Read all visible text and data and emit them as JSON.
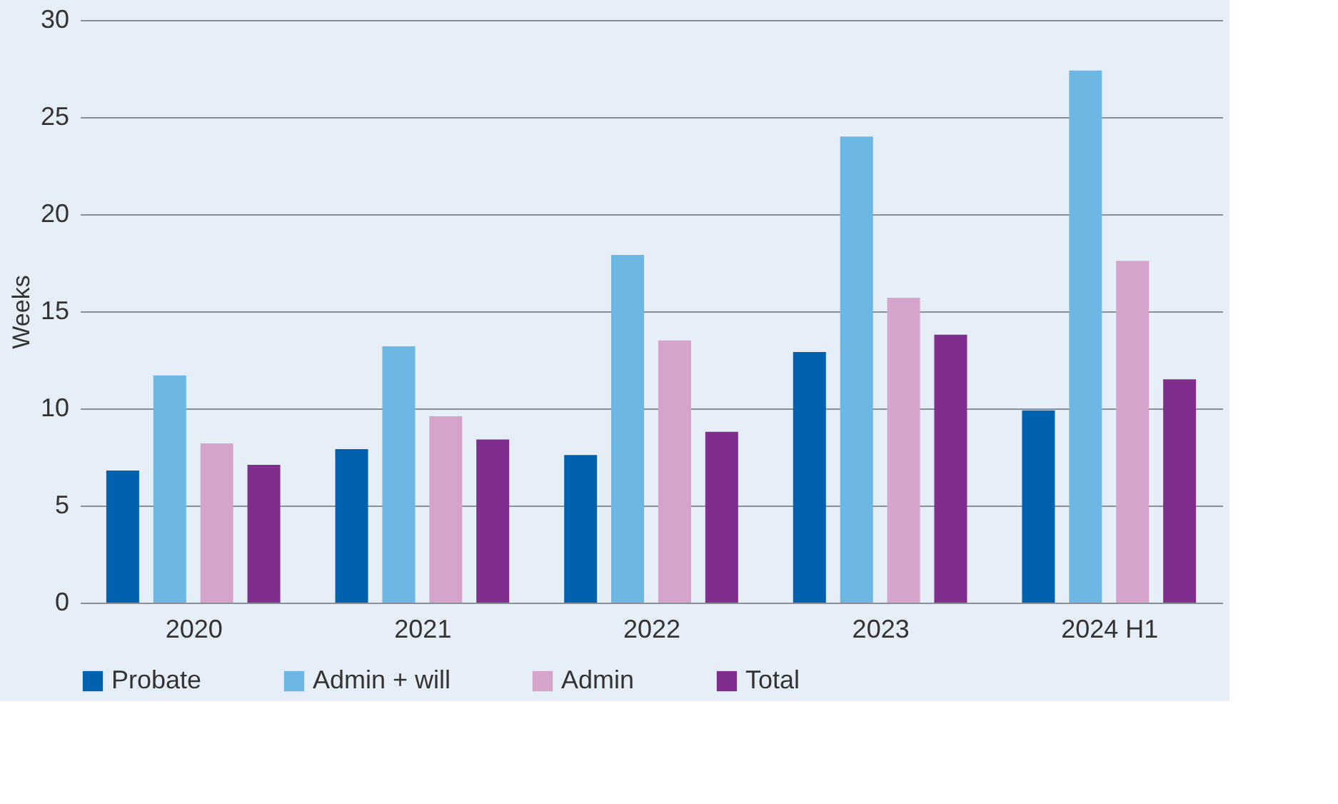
{
  "chart_data": {
    "type": "bar",
    "ylabel": "Weeks",
    "categories": [
      "2020",
      "2021",
      "2022",
      "2023",
      "2024 H1"
    ],
    "series": [
      {
        "name": "Probate",
        "color": "#0062ae",
        "values": [
          6.8,
          7.9,
          7.6,
          12.9,
          9.9
        ]
      },
      {
        "name": "Admin + will",
        "color": "#6cb7e4",
        "values": [
          11.7,
          13.2,
          17.9,
          24.0,
          27.4
        ]
      },
      {
        "name": "Admin",
        "color": "#d6a3cb",
        "values": [
          8.2,
          9.6,
          13.5,
          15.7,
          17.6
        ]
      },
      {
        "name": "Total",
        "color": "#7f2e8e",
        "values": [
          7.1,
          8.4,
          8.8,
          13.8,
          11.5
        ]
      }
    ],
    "ylim": [
      0,
      30
    ],
    "yticks": [
      0,
      5,
      10,
      15,
      20,
      25,
      30
    ],
    "grid": "y",
    "legend": "bottom"
  }
}
